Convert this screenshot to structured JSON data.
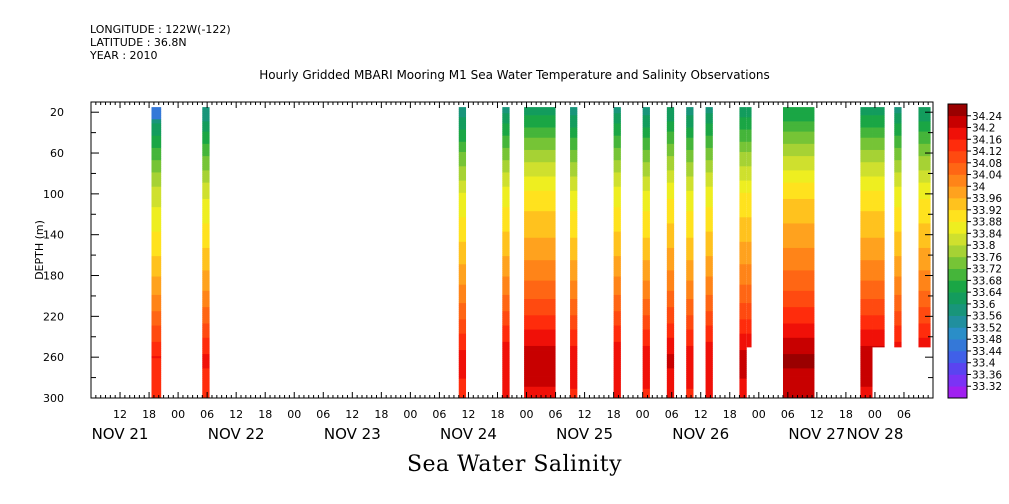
{
  "header": {
    "longitude": "LONGITUDE : 122W(-122)",
    "latitude": "LATITUDE : 36.8N",
    "year": "YEAR : 2010"
  },
  "chart_data": {
    "type": "heatmap",
    "title": "Hourly Gridded MBARI Mooring M1 Sea Water Temperature and Salinity Observations",
    "xlabel": "Sea Water Salinity",
    "ylabel": "DEPTH (m)",
    "ylim": [
      300,
      10
    ],
    "y_ticks": [
      20,
      60,
      100,
      140,
      180,
      220,
      260,
      300
    ],
    "x_hour_labels": [
      {
        "h": 12,
        "label": "12"
      },
      {
        "h": 18,
        "label": "18"
      },
      {
        "h": 24,
        "label": "00"
      },
      {
        "h": 30,
        "label": "06"
      },
      {
        "h": 36,
        "label": "12"
      },
      {
        "h": 42,
        "label": "18"
      },
      {
        "h": 48,
        "label": "00"
      },
      {
        "h": 54,
        "label": "06"
      },
      {
        "h": 60,
        "label": "12"
      },
      {
        "h": 66,
        "label": "18"
      },
      {
        "h": 72,
        "label": "00"
      },
      {
        "h": 78,
        "label": "06"
      },
      {
        "h": 84,
        "label": "12"
      },
      {
        "h": 90,
        "label": "18"
      },
      {
        "h": 96,
        "label": "00"
      },
      {
        "h": 102,
        "label": "06"
      },
      {
        "h": 108,
        "label": "12"
      },
      {
        "h": 114,
        "label": "18"
      },
      {
        "h": 120,
        "label": "00"
      },
      {
        "h": 126,
        "label": "06"
      },
      {
        "h": 132,
        "label": "12"
      },
      {
        "h": 138,
        "label": "18"
      },
      {
        "h": 144,
        "label": "00"
      },
      {
        "h": 150,
        "label": "06"
      },
      {
        "h": 156,
        "label": "12"
      },
      {
        "h": 162,
        "label": "18"
      },
      {
        "h": 168,
        "label": "00"
      },
      {
        "h": 174,
        "label": "06"
      }
    ],
    "x_day_labels": [
      {
        "h": 12,
        "label": "NOV 21"
      },
      {
        "h": 36,
        "label": "NOV 22"
      },
      {
        "h": 60,
        "label": "NOV 23"
      },
      {
        "h": 84,
        "label": "NOV 24"
      },
      {
        "h": 108,
        "label": "NOV 25"
      },
      {
        "h": 132,
        "label": "NOV 26"
      },
      {
        "h": 156,
        "label": "NOV 27"
      },
      {
        "h": 168,
        "label": "NOV 28"
      }
    ],
    "colorbar": {
      "levels": [
        33.32,
        33.36,
        33.4,
        33.44,
        33.48,
        33.52,
        33.56,
        33.6,
        33.64,
        33.68,
        33.72,
        33.76,
        33.8,
        33.84,
        33.88,
        33.92,
        33.96,
        34,
        34.04,
        34.08,
        34.12,
        34.16,
        34.2,
        34.24
      ],
      "labels": [
        "33.32",
        "33.36",
        "33.4",
        "33.44",
        "33.48",
        "33.52",
        "33.56",
        "33.6",
        "33.64",
        "33.68",
        "33.72",
        "33.76",
        "33.8",
        "33.84",
        "33.88",
        "33.92",
        "33.96",
        "34",
        "34.04",
        "34.08",
        "34.12",
        "34.16",
        "34.2",
        "34.24"
      ],
      "colors": [
        "#a020f0",
        "#7b33f5",
        "#5a44f0",
        "#4060e8",
        "#3478d8",
        "#2a8ec8",
        "#208f9e",
        "#18957a",
        "#139c5d",
        "#1aa645",
        "#45b53a",
        "#76c436",
        "#a6d234",
        "#cfe02e",
        "#eeee20",
        "#ffe21e",
        "#ffc21e",
        "#ffa21e",
        "#ff8418",
        "#ff6614",
        "#ff4a10",
        "#ff2c0c",
        "#f01008",
        "#c80000",
        "#9a0000"
      ]
    },
    "profile": [
      {
        "depth": 20,
        "value": 33.62
      },
      {
        "depth": 60,
        "value": 33.76
      },
      {
        "depth": 100,
        "value": 33.88
      },
      {
        "depth": 130,
        "value": 33.93
      },
      {
        "depth": 160,
        "value": 33.98
      },
      {
        "depth": 200,
        "value": 34.06
      },
      {
        "depth": 230,
        "value": 34.14
      },
      {
        "depth": 260,
        "value": 34.22
      },
      {
        "depth": 300,
        "value": 34.18
      }
    ],
    "columns": [
      {
        "start": 18.5,
        "end": 20.5,
        "top": 20,
        "bottom": 300,
        "offset": -0.06,
        "surface": 33.46
      },
      {
        "start": 29.0,
        "end": 30.5,
        "top": 20,
        "bottom": 300,
        "offset": -0.05
      },
      {
        "start": 82.0,
        "end": 83.5,
        "top": 20,
        "bottom": 300,
        "offset": -0.04
      },
      {
        "start": 91.0,
        "end": 92.5,
        "top": 20,
        "bottom": 300,
        "offset": -0.02
      },
      {
        "start": 95.5,
        "end": 102.0,
        "top": 20,
        "bottom": 300,
        "offset": 0.01
      },
      {
        "start": 105.0,
        "end": 106.5,
        "top": 20,
        "bottom": 300,
        "offset": -0.03
      },
      {
        "start": 114.0,
        "end": 115.5,
        "top": 20,
        "bottom": 300,
        "offset": -0.02
      },
      {
        "start": 120.0,
        "end": 121.5,
        "top": 20,
        "bottom": 300,
        "offset": -0.03
      },
      {
        "start": 125.0,
        "end": 126.5,
        "top": 20,
        "bottom": 300,
        "offset": -0.01
      },
      {
        "start": 129.0,
        "end": 130.5,
        "top": 20,
        "bottom": 300,
        "offset": -0.03
      },
      {
        "start": 133.0,
        "end": 134.5,
        "top": 20,
        "bottom": 300,
        "offset": -0.02
      },
      {
        "start": 140.0,
        "end": 141.5,
        "top": 20,
        "bottom": 300,
        "offset": 0.0
      },
      {
        "start": 141.5,
        "end": 142.5,
        "top": 20,
        "bottom": 250,
        "offset": 0.0
      },
      {
        "start": 149.0,
        "end": 155.5,
        "top": 20,
        "bottom": 300,
        "offset": 0.03
      },
      {
        "start": 165.0,
        "end": 167.5,
        "top": 20,
        "bottom": 300,
        "offset": 0.01
      },
      {
        "start": 167.5,
        "end": 170.0,
        "top": 20,
        "bottom": 250,
        "offset": 0.01
      },
      {
        "start": 172.0,
        "end": 173.5,
        "top": 20,
        "bottom": 250,
        "offset": -0.02
      },
      {
        "start": 177.0,
        "end": 179.5,
        "top": 20,
        "bottom": 250,
        "offset": -0.01
      },
      {
        "start": 184.0,
        "end": 185.5,
        "top": 20,
        "bottom": 250,
        "offset": -0.03
      }
    ]
  }
}
